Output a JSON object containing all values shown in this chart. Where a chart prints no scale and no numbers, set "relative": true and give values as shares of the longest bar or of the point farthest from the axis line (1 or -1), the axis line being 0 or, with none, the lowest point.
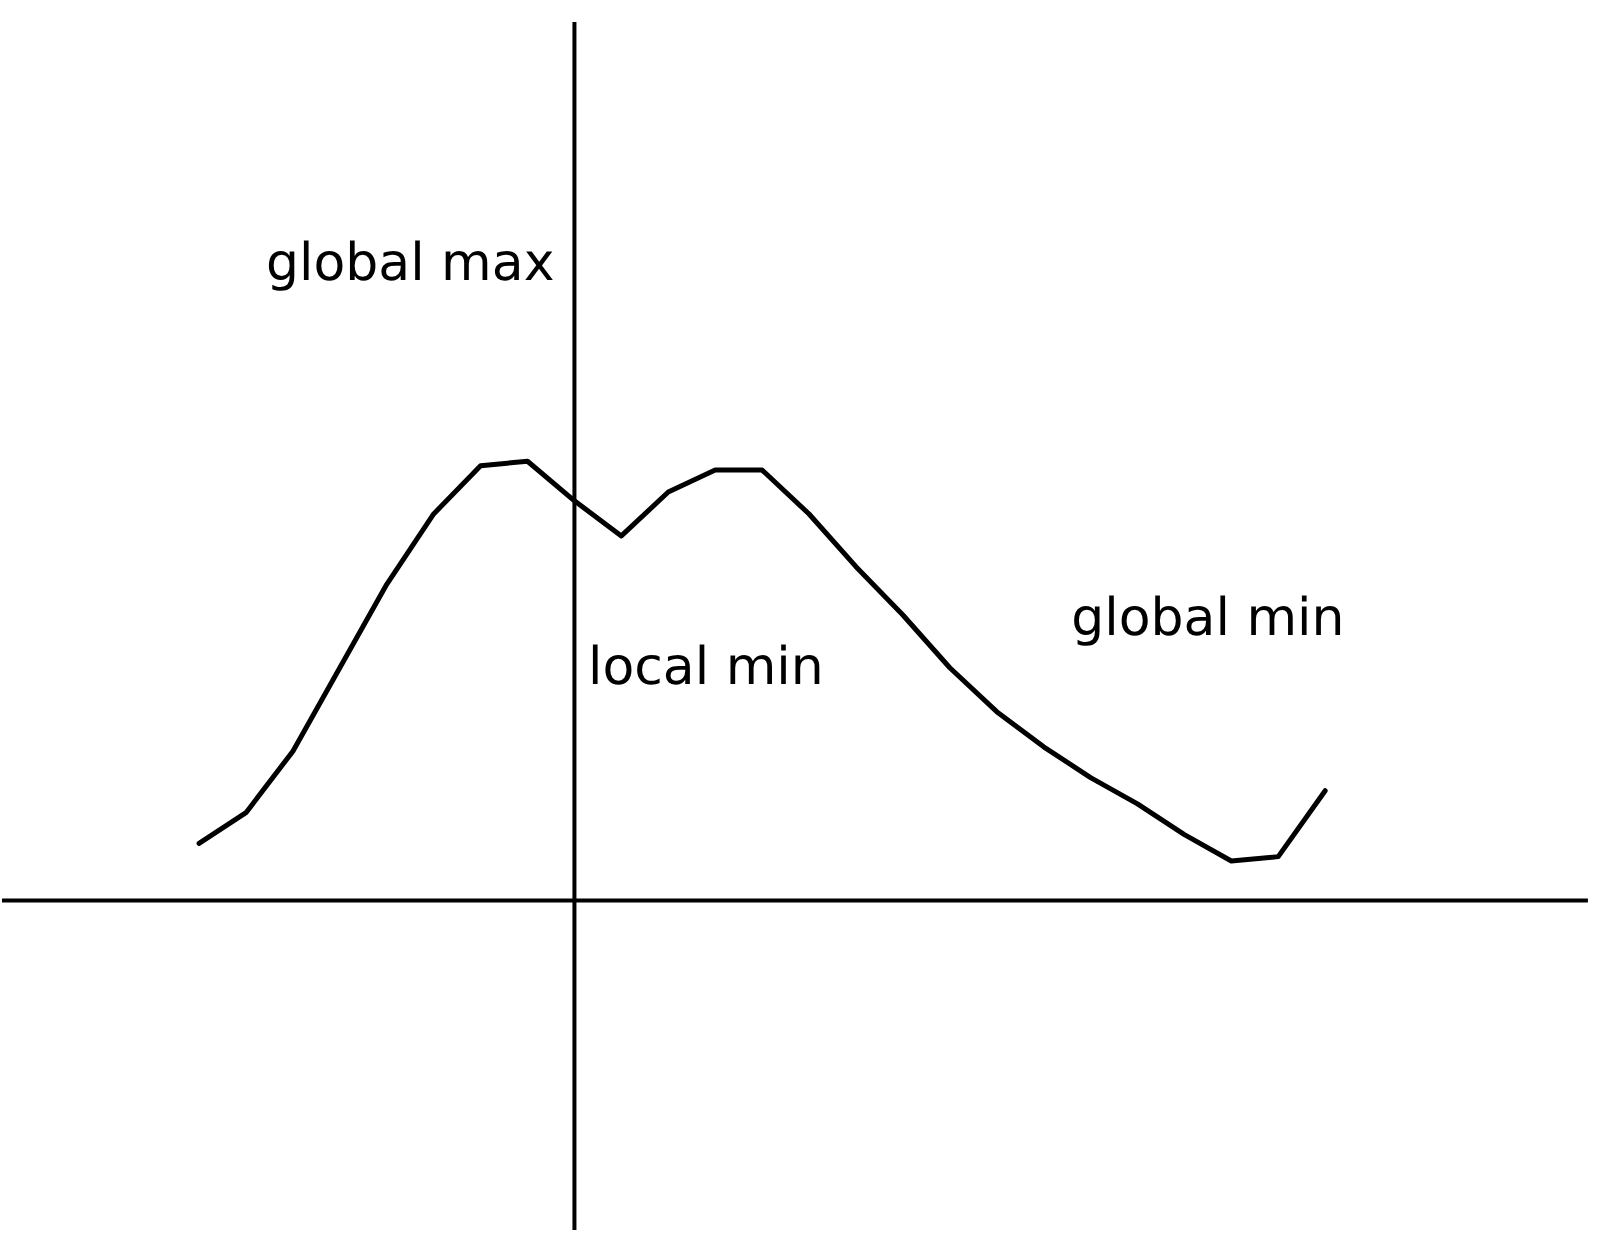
{
  "chart_data": {
    "type": "line",
    "relative": true,
    "color": "#000000",
    "categories": [
      null,
      null,
      null,
      null,
      null,
      null,
      null,
      null,
      null,
      null,
      null,
      null,
      null,
      null,
      null,
      null,
      null,
      null,
      null,
      null,
      null,
      null,
      null,
      null,
      null
    ],
    "values": [
      0.13,
      0.2,
      0.34,
      0.53,
      0.72,
      0.88,
      0.99,
      1,
      0.91,
      0.83,
      0.93,
      0.98,
      0.98,
      0.88,
      0.76,
      0.65,
      0.53,
      0.43,
      0.35,
      0.28,
      0.22,
      0.15,
      0.09,
      0.1,
      0.25
    ],
    "annotations": [
      "global max",
      "local min",
      "global min"
    ]
  }
}
